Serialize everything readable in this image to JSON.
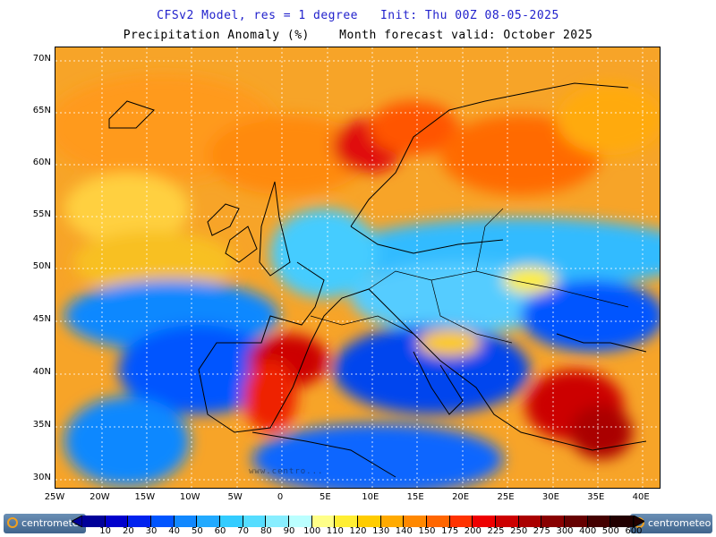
{
  "title": {
    "line1": "CFSv2 Model, res = 1 degree   Init: Thu 00Z 08-05-2025",
    "line2": "Precipitation Anomaly (%)    Month forecast valid: October 2025"
  },
  "map": {
    "lat_labels": [
      "70N",
      "65N",
      "60N",
      "55N",
      "50N",
      "45N",
      "40N",
      "35N",
      "30N"
    ],
    "lon_labels": [
      "25W",
      "20W",
      "15W",
      "10W",
      "5W",
      "0",
      "5E",
      "10E",
      "15E",
      "20E",
      "25E",
      "30E",
      "35E",
      "40E"
    ],
    "watermark": "www.centro..."
  },
  "colorbar": {
    "labels": [
      "10",
      "20",
      "30",
      "40",
      "50",
      "60",
      "70",
      "80",
      "90",
      "100",
      "110",
      "120",
      "130",
      "140",
      "150",
      "175",
      "200",
      "225",
      "250",
      "275",
      "300",
      "400",
      "500",
      "600"
    ],
    "colors": [
      "#000099",
      "#0000cc",
      "#0022ee",
      "#0055ff",
      "#1188ff",
      "#22aaff",
      "#33ccff",
      "#55ddff",
      "#88eeff",
      "#bbffff",
      "#ffff88",
      "#ffee33",
      "#ffcc00",
      "#ffaa00",
      "#ff8800",
      "#ff6600",
      "#ff3300",
      "#ee0000",
      "#cc0000",
      "#aa0000",
      "#880000",
      "#660000",
      "#440000",
      "#220000"
    ]
  },
  "logos": {
    "left": "centrometeo",
    "right": "centrometeo"
  }
}
